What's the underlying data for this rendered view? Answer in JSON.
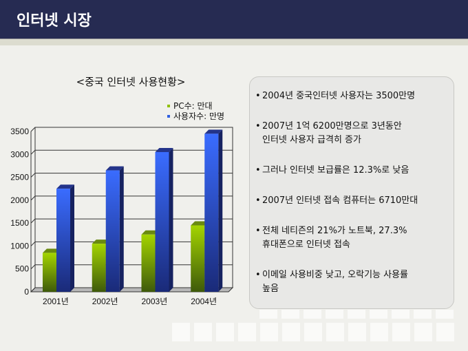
{
  "header": {
    "title": "인터넷 시장"
  },
  "chart_data": {
    "type": "bar",
    "title": "<중국 인터넷 사용현황>",
    "categories": [
      "2001년",
      "2002년",
      "2003년",
      "2004년"
    ],
    "series": [
      {
        "name": "PC수: 만대",
        "color": "#8fbf00",
        "values": [
          850,
          1050,
          1250,
          1450
        ]
      },
      {
        "name": "사용자수: 만명",
        "color": "#2f5fe0",
        "values": [
          2250,
          2650,
          3050,
          3450
        ]
      }
    ],
    "yticks": [
      "0",
      "500",
      "1000",
      "1500",
      "2000",
      "2500",
      "3000",
      "3500"
    ],
    "ylim": [
      0,
      3500
    ],
    "grid": true,
    "legend": "top-right",
    "xlabel": "",
    "ylabel": ""
  },
  "panel": {
    "bullets": [
      {
        "lines": [
          "2004년 중국인터넷 사용자는 3500만명"
        ]
      },
      {
        "lines": [
          "2007년 1억 6200만명으로 3년동안",
          "인터넷 사용자 급격히 증가"
        ]
      },
      {
        "lines": [
          "그러나 인터넷 보급률은 12.3%로 낮음"
        ]
      },
      {
        "lines": [
          "2007년 인터넷 접속 컴퓨터는 6710만대"
        ]
      },
      {
        "lines": [
          "전체 네티즌의 21%가 노트북, 27.3%",
          "휴대폰으로 인터넷 접속"
        ]
      },
      {
        "lines": [
          "이메일 사용비중 낮고, 오락기능 사용률",
          "높음"
        ]
      }
    ]
  }
}
